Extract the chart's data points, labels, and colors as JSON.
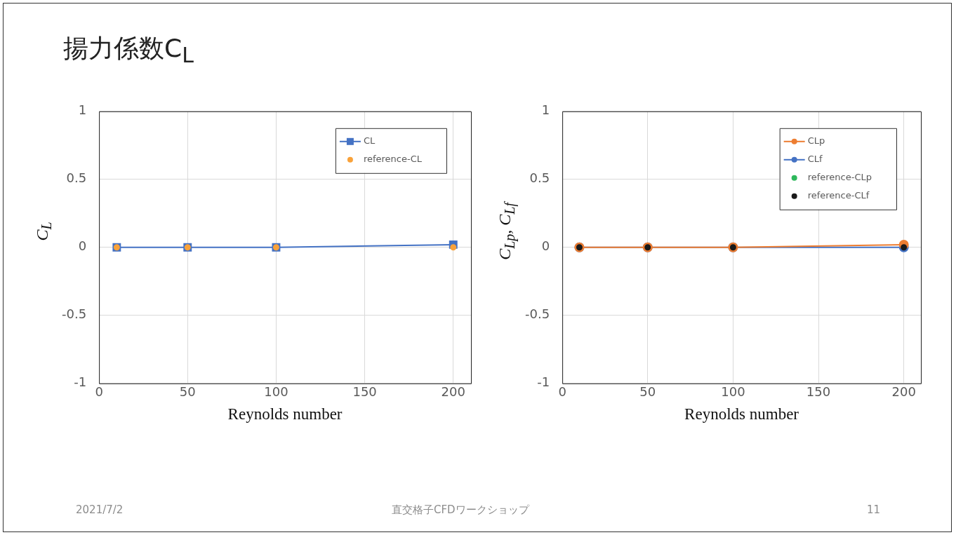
{
  "chart_data": [
    {
      "type": "line",
      "title": "揚力係数C$_{L}$",
      "xlabel": "Reynolds number",
      "ylabel": "C$_{L}$",
      "x": [
        10,
        50,
        100,
        200
      ],
      "series": [
        {
          "name": "CL",
          "type": "line",
          "marker": "square",
          "color": "#4472c4",
          "values": [
            0,
            0,
            0,
            0.02
          ]
        },
        {
          "name": "reference-CL",
          "type": "scatter",
          "marker": "circle",
          "color": "#f9a23a",
          "values": [
            0,
            0,
            0,
            0
          ]
        }
      ],
      "xlim": [
        0,
        210
      ],
      "xticks": [
        0,
        50,
        100,
        150,
        200
      ],
      "ylim": [
        -1,
        1
      ],
      "yticks": [
        -1,
        -0.5,
        0,
        0.5,
        1
      ],
      "grid": true,
      "legend": "top right",
      "line_style": "solid",
      "annotations": [
        "2021/7/2",
        "直交格子CFDワークショップ",
        "11"
      ]
    },
    {
      "type": "line",
      "xlabel": "Reynolds number",
      "ylabel": "C$_{Lp}$, C$_{Lf}$",
      "x": [
        10,
        50,
        100,
        200
      ],
      "series": [
        {
          "name": "CLp",
          "type": "line",
          "marker": "circle",
          "color": "#ed7d31",
          "values": [
            0,
            0,
            0,
            0.02
          ]
        },
        {
          "name": "CLf",
          "type": "line",
          "marker": "circle",
          "color": "#4472c4",
          "values": [
            0,
            0,
            0,
            0
          ]
        },
        {
          "name": "reference-CLp",
          "type": "scatter",
          "marker": "circle",
          "color": "#2eb85c",
          "values": [
            null,
            null,
            null,
            null
          ]
        },
        {
          "name": "reference-CLf",
          "type": "scatter",
          "marker": "circle",
          "color": "#1a1a1a",
          "values": [
            0,
            0,
            0,
            0
          ]
        }
      ],
      "xlim": [
        0,
        210
      ],
      "xticks": [
        0,
        50,
        100,
        150,
        200
      ],
      "ylim": [
        -1,
        1
      ],
      "yticks": [
        -1,
        -0.5,
        0,
        0.5,
        1
      ],
      "grid": true,
      "legend": "top right",
      "line_style": "solid"
    }
  ]
}
